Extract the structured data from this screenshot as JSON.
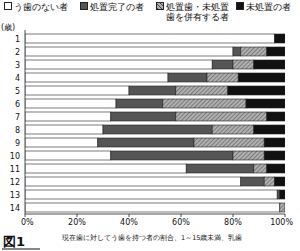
{
  "chart_data": {
    "type": "bar",
    "orientation": "horizontal",
    "stacked": true,
    "y_label": "(歳)",
    "caption": "現在歯に対してう歯を持つ者の割合、1～15歳未満、乳歯",
    "figure_label": "図1",
    "categories": [
      "1",
      "2",
      "3",
      "4",
      "5",
      "6",
      "7",
      "8",
      "9",
      "10",
      "11",
      "12",
      "13",
      "14"
    ],
    "series": [
      {
        "name": "う歯のない者",
        "color": "#ffffff",
        "values": [
          96,
          80,
          72,
          55,
          40,
          35,
          33,
          30,
          28,
          33,
          62,
          83,
          97,
          98
        ]
      },
      {
        "name": "処置完了の者",
        "color": "#555555",
        "values": [
          0,
          3,
          8,
          15,
          18,
          18,
          25,
          42,
          37,
          47,
          26,
          9,
          1,
          0
        ]
      },
      {
        "name": "処置歯・未処置歯を併有する者",
        "color": "#b0b0b0",
        "values": [
          0,
          10,
          8,
          12,
          20,
          32,
          35,
          16,
          27,
          12,
          5,
          4,
          0,
          2
        ]
      },
      {
        "name": "未処置の者",
        "color": "#111111",
        "values": [
          4,
          7,
          12,
          18,
          22,
          15,
          7,
          12,
          8,
          8,
          7,
          4,
          2,
          0
        ]
      }
    ],
    "xlim": [
      0,
      100
    ],
    "xticks": [
      {
        "value": 0,
        "label": "0%"
      },
      {
        "value": 20,
        "label": "20%"
      },
      {
        "value": 40,
        "label": "40%"
      },
      {
        "value": 60,
        "label": "60%"
      },
      {
        "value": 80,
        "label": "80%"
      },
      {
        "value": 100,
        "label": "100%"
      }
    ],
    "legend": "top"
  }
}
